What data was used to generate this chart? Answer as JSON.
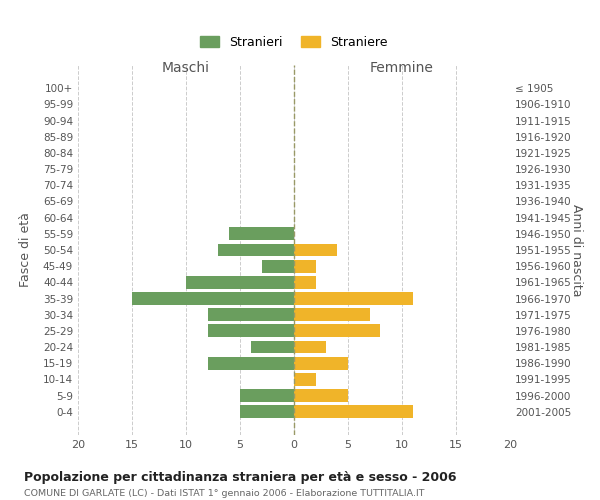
{
  "age_groups": [
    "100+",
    "95-99",
    "90-94",
    "85-89",
    "80-84",
    "75-79",
    "70-74",
    "65-69",
    "60-64",
    "55-59",
    "50-54",
    "45-49",
    "40-44",
    "35-39",
    "30-34",
    "25-29",
    "20-24",
    "15-19",
    "10-14",
    "5-9",
    "0-4"
  ],
  "birth_years": [
    "≤ 1905",
    "1906-1910",
    "1911-1915",
    "1916-1920",
    "1921-1925",
    "1926-1930",
    "1931-1935",
    "1936-1940",
    "1941-1945",
    "1946-1950",
    "1951-1955",
    "1956-1960",
    "1961-1965",
    "1966-1970",
    "1971-1975",
    "1976-1980",
    "1981-1985",
    "1986-1990",
    "1991-1995",
    "1996-2000",
    "2001-2005"
  ],
  "maschi": [
    0,
    0,
    0,
    0,
    0,
    0,
    0,
    0,
    0,
    6,
    7,
    3,
    10,
    15,
    8,
    8,
    4,
    8,
    0,
    5,
    5
  ],
  "femmine": [
    0,
    0,
    0,
    0,
    0,
    0,
    0,
    0,
    0,
    0,
    4,
    2,
    2,
    11,
    7,
    8,
    3,
    5,
    2,
    5,
    11
  ],
  "maschi_color": "#6a9e5e",
  "femmine_color": "#f0b429",
  "title": "Popolazione per cittadinanza straniera per età e sesso - 2006",
  "subtitle": "COMUNE DI GARLATE (LC) - Dati ISTAT 1° gennaio 2006 - Elaborazione TUTTITALIA.IT",
  "xlabel_left": "Maschi",
  "xlabel_right": "Femmine",
  "ylabel_left": "Fasce di età",
  "ylabel_right": "Anni di nascita",
  "legend_maschi": "Stranieri",
  "legend_femmine": "Straniere",
  "xlim": 20,
  "background_color": "#ffffff",
  "grid_color": "#cccccc",
  "bar_height": 0.8
}
